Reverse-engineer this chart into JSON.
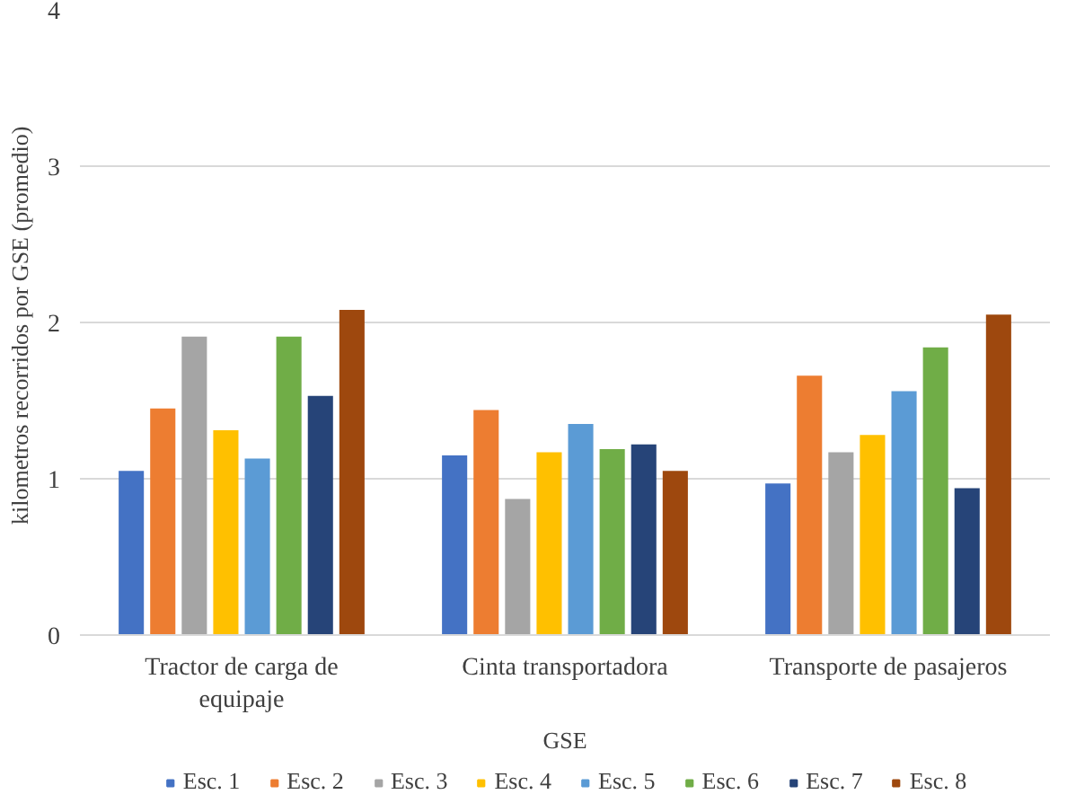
{
  "chart_data": {
    "type": "bar",
    "xlabel": "GSE",
    "ylabel": "kilometros  recorridos por GSE (promedio)",
    "categories": [
      "Tractor de carga de equipaje",
      "Cinta transportadora",
      "Transporte de pasajeros"
    ],
    "series": [
      {
        "name": "Esc. 1",
        "color": "#4472c4",
        "values": [
          1.05,
          1.15,
          0.97
        ]
      },
      {
        "name": "Esc. 2",
        "color": "#ed7d31",
        "values": [
          1.45,
          1.44,
          1.66
        ]
      },
      {
        "name": "Esc. 3",
        "color": "#a5a5a5",
        "values": [
          1.91,
          0.87,
          1.17
        ]
      },
      {
        "name": "Esc. 4",
        "color": "#ffc000",
        "values": [
          1.31,
          1.17,
          1.28
        ]
      },
      {
        "name": "Esc. 5",
        "color": "#5b9bd5",
        "values": [
          1.13,
          1.35,
          1.56
        ]
      },
      {
        "name": "Esc. 6",
        "color": "#70ad47",
        "values": [
          1.91,
          1.19,
          1.84
        ]
      },
      {
        "name": "Esc. 7",
        "color": "#264478",
        "values": [
          1.53,
          1.22,
          0.94
        ]
      },
      {
        "name": "Esc. 8",
        "color": "#9e480e",
        "values": [
          2.08,
          1.05,
          2.05
        ]
      }
    ],
    "ylim": [
      0,
      4
    ],
    "yticks": [
      0,
      1,
      2,
      3,
      4
    ],
    "grid": "y",
    "legend": "bottom"
  }
}
